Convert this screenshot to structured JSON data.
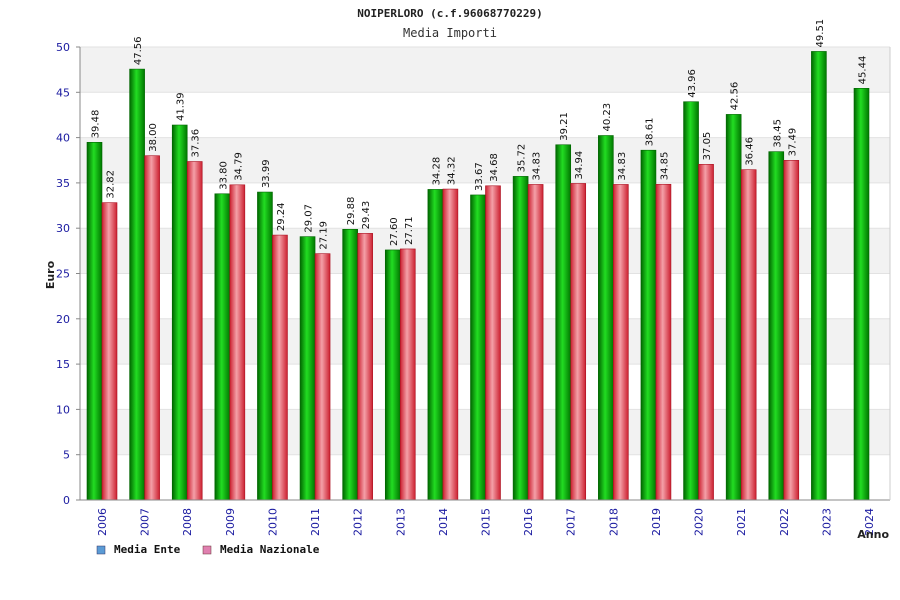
{
  "chart_data": {
    "type": "bar",
    "title": "NOIPERLORO (c.f.96068770229)",
    "subtitle": "Media Importi",
    "ylabel": "Euro",
    "xlabel": "Anno",
    "ylim": [
      0,
      50
    ],
    "yticks": [
      "0",
      "5",
      "10",
      "15",
      "20",
      "25",
      "30",
      "35",
      "40",
      "45",
      "50"
    ],
    "categories": [
      "2006",
      "2007",
      "2008",
      "2009",
      "2010",
      "2011",
      "2012",
      "2013",
      "2014",
      "2015",
      "2016",
      "2017",
      "2018",
      "2019",
      "2020",
      "2021",
      "2022",
      "2023",
      "2024"
    ],
    "series": [
      {
        "name": "Media Ente",
        "color": "#00b000",
        "legend_color": "#5b9bd5",
        "values": [
          39.48,
          47.56,
          41.39,
          33.8,
          33.99,
          29.07,
          29.88,
          27.6,
          34.28,
          33.67,
          35.72,
          39.21,
          40.23,
          38.61,
          43.96,
          42.56,
          38.45,
          49.51,
          45.44
        ],
        "labels": [
          "39.48",
          "47.56",
          "41.39",
          "33.80",
          "33.99",
          "29.07",
          "29.88",
          "27.60",
          "34.28",
          "33.67",
          "35.72",
          "39.21",
          "40.23",
          "38.61",
          "43.96",
          "42.56",
          "38.45",
          "49.51",
          "45.44"
        ]
      },
      {
        "name": "Media Nazionale",
        "color": "#e03040",
        "legend_color": "#e080b0",
        "values": [
          32.82,
          38.0,
          37.36,
          34.79,
          29.24,
          27.19,
          29.43,
          27.71,
          34.32,
          34.68,
          34.83,
          34.94,
          34.83,
          34.85,
          37.05,
          36.46,
          37.49,
          null,
          null
        ],
        "labels": [
          "32.82",
          "38.00",
          "37.36",
          "34.79",
          "29.24",
          "27.19",
          "29.43",
          "27.71",
          "34.32",
          "34.68",
          "34.83",
          "34.94",
          "34.83",
          "34.85",
          "37.05",
          "36.46",
          "37.49",
          null,
          null
        ]
      }
    ],
    "grid": true,
    "legend_position": "bottom-left"
  }
}
